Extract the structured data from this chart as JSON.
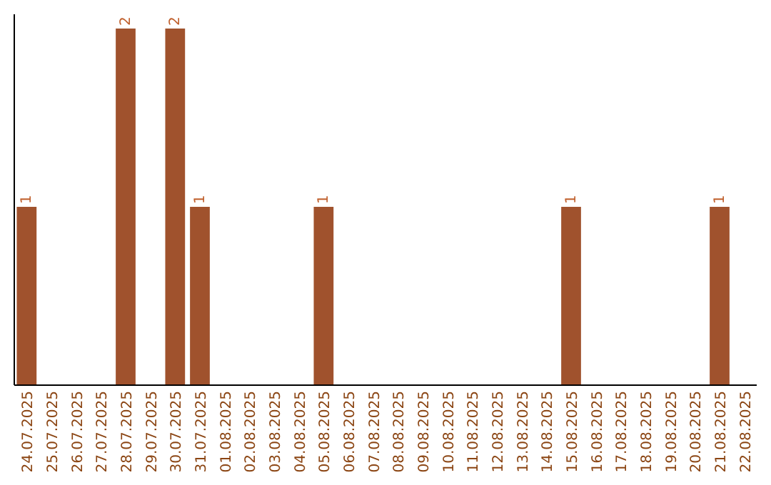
{
  "chart_data": {
    "type": "bar",
    "categories": [
      "24.07.2025",
      "25.07.2025",
      "26.07.2025",
      "27.07.2025",
      "28.07.2025",
      "29.07.2025",
      "30.07.2025",
      "31.07.2025",
      "01.08.2025",
      "02.08.2025",
      "03.08.2025",
      "04.08.2025",
      "05.08.2025",
      "06.08.2025",
      "07.08.2025",
      "08.08.2025",
      "09.08.2025",
      "10.08.2025",
      "11.08.2025",
      "12.08.2025",
      "13.08.2025",
      "14.08.2025",
      "15.08.2025",
      "16.08.2025",
      "17.08.2025",
      "18.08.2025",
      "19.08.2025",
      "20.08.2025",
      "21.08.2025",
      "22.08.2025"
    ],
    "values": [
      1,
      0,
      0,
      0,
      2,
      0,
      2,
      1,
      0,
      0,
      0,
      0,
      1,
      0,
      0,
      0,
      0,
      0,
      0,
      0,
      0,
      0,
      1,
      0,
      0,
      0,
      0,
      0,
      1,
      0
    ],
    "value_labels": [
      "1",
      null,
      null,
      null,
      "2",
      null,
      "2",
      "1",
      null,
      null,
      null,
      null,
      "1",
      null,
      null,
      null,
      null,
      null,
      null,
      null,
      null,
      null,
      "1",
      null,
      null,
      null,
      null,
      null,
      "1",
      null
    ],
    "color": "#a0522d",
    "tick_labels": "x"
  }
}
